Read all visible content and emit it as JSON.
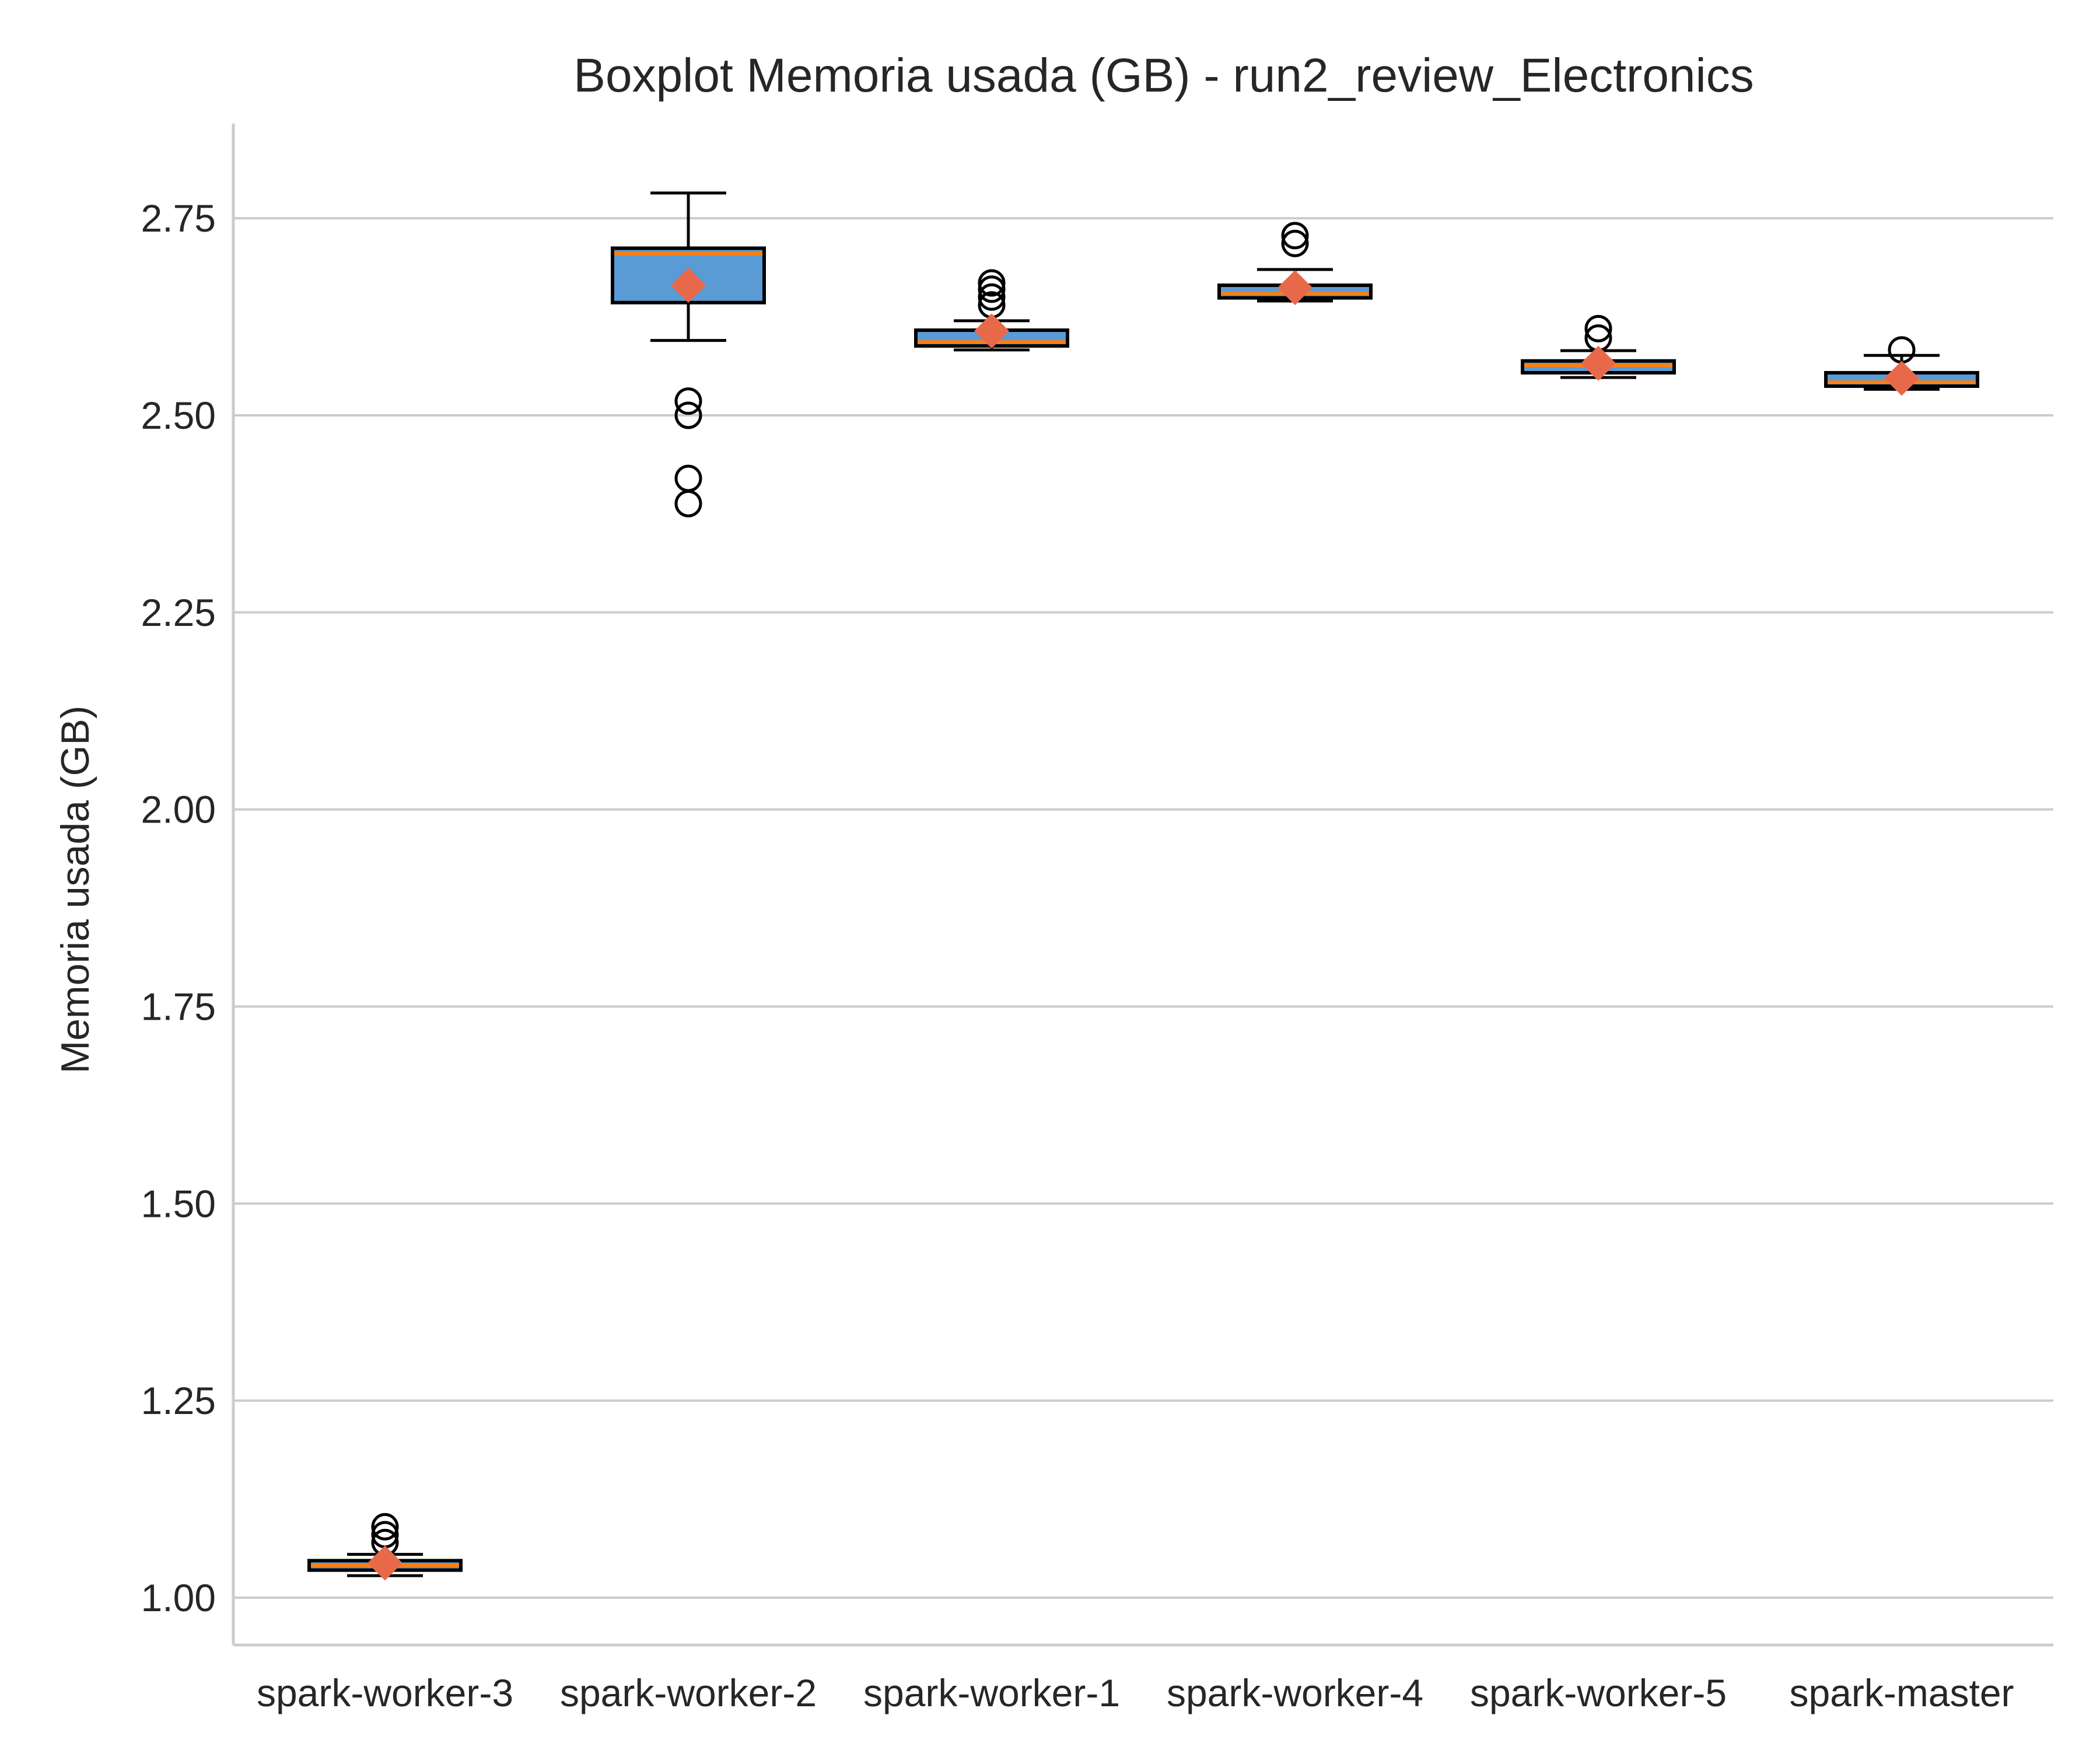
{
  "chart_data": {
    "type": "boxplot",
    "title": "Boxplot Memoria usada (GB) - run2_review_Electronics",
    "xlabel": "",
    "ylabel": "Memoria usada (GB)",
    "ylim": [
      0.94,
      2.87
    ],
    "yticks": [
      1.0,
      1.25,
      1.5,
      1.75,
      2.0,
      2.25,
      2.5,
      2.75
    ],
    "ytick_labels": [
      "1.00",
      "1.25",
      "1.50",
      "1.75",
      "2.00",
      "2.25",
      "2.50",
      "2.75"
    ],
    "grid": "horizontal",
    "categories": [
      "spark-worker-3",
      "spark-worker-2",
      "spark-worker-1",
      "spark-worker-4",
      "spark-worker-5",
      "spark-master"
    ],
    "boxes": [
      {
        "whisker_low": 1.028,
        "q1": 1.035,
        "median": 1.041,
        "q3": 1.047,
        "whisker_high": 1.055,
        "mean": 1.044,
        "outliers": [
          1.07,
          1.08,
          1.09
        ]
      },
      {
        "whisker_low": 2.595,
        "q1": 2.643,
        "median": 2.705,
        "q3": 2.712,
        "whisker_high": 2.782,
        "mean": 2.665,
        "outliers": [
          2.388,
          2.42,
          2.5,
          2.518
        ]
      },
      {
        "whisker_low": 2.583,
        "q1": 2.588,
        "median": 2.593,
        "q3": 2.608,
        "whisker_high": 2.62,
        "mean": 2.607,
        "outliers": [
          2.64,
          2.65,
          2.66,
          2.668
        ]
      },
      {
        "whisker_low": 2.645,
        "q1": 2.649,
        "median": 2.655,
        "q3": 2.665,
        "whisker_high": 2.685,
        "mean": 2.662,
        "outliers": [
          2.718,
          2.728
        ]
      },
      {
        "whisker_low": 2.548,
        "q1": 2.554,
        "median": 2.563,
        "q3": 2.569,
        "whisker_high": 2.582,
        "mean": 2.566,
        "outliers": [
          2.598,
          2.61
        ]
      },
      {
        "whisker_low": 2.533,
        "q1": 2.537,
        "median": 2.542,
        "q3": 2.554,
        "whisker_high": 2.576,
        "mean": 2.547,
        "outliers": [
          2.583
        ]
      }
    ]
  },
  "colors": {
    "box_fill": "#5b9bd5",
    "median": "#ff7f0e",
    "mean_marker": "#e8694a",
    "grid": "#cccccc",
    "axis": "#cccccc",
    "stroke": "#000000"
  }
}
